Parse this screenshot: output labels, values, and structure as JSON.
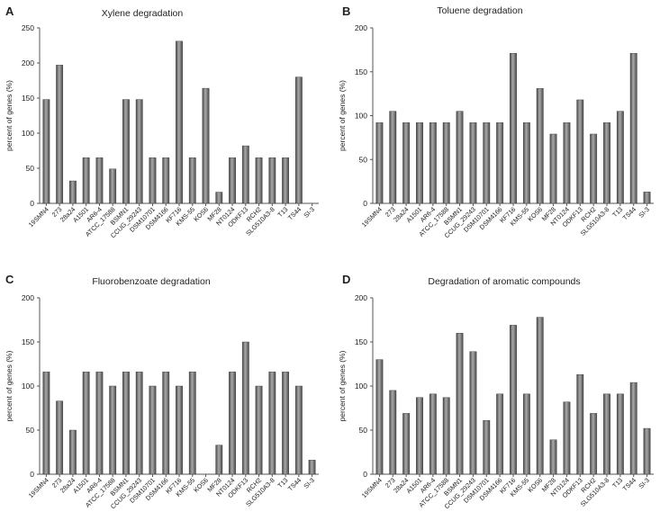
{
  "figure": {
    "colors": {
      "bar": "#4a4a4a",
      "bar_highlight": "#a9a9a9",
      "axis": "#555555",
      "text": "#222222"
    }
  },
  "chart_data": [
    {
      "panel": "A",
      "type": "bar",
      "title": "Xylene degradation",
      "xlabel": "",
      "ylabel": "percent of genes (%)",
      "ylim": [
        0,
        250
      ],
      "yticks": [
        0,
        50,
        100,
        150,
        200,
        250
      ],
      "categories": [
        "19SMN4",
        "273",
        "28a24",
        "A1501",
        "AR6-4",
        "ATCC_17588",
        "BSMN1",
        "CCUG_29243",
        "DSM10701",
        "DSM4166",
        "KF716",
        "KMS-55",
        "KOS6",
        "MF28",
        "NT0124",
        "ODKF13",
        "RCH2",
        "SLG510A3-8",
        "T13",
        "TS44",
        "SI-3"
      ],
      "values": [
        148,
        197,
        32,
        65,
        65,
        49,
        148,
        148,
        65,
        65,
        231,
        65,
        164,
        16,
        65,
        82,
        65,
        65,
        65,
        180,
        0
      ]
    },
    {
      "panel": "B",
      "type": "bar",
      "title": "Toluene degradation",
      "xlabel": "",
      "ylabel": "percent of genes (%)",
      "ylim": [
        0,
        200
      ],
      "yticks": [
        0,
        50,
        100,
        150,
        200
      ],
      "categories": [
        "19SMN4",
        "273",
        "28a24",
        "A1501",
        "AR6-4",
        "ATCC_17588",
        "BSMN1",
        "CCUG_29243",
        "DSM10701",
        "DSM4166",
        "KF716",
        "KMS-55",
        "KOS6",
        "MF28",
        "NT0124",
        "ODKF13",
        "RCH2",
        "SLG510A3-8",
        "T13",
        "TS44",
        "SI-3"
      ],
      "values": [
        92,
        105,
        92,
        92,
        92,
        92,
        105,
        92,
        92,
        92,
        171,
        92,
        131,
        79,
        92,
        118,
        79,
        92,
        105,
        171,
        13
      ]
    },
    {
      "panel": "C",
      "type": "bar",
      "title": "Fluorobenzoate degradation",
      "xlabel": "",
      "ylabel": "percent of genes (%)",
      "ylim": [
        0,
        200
      ],
      "yticks": [
        0,
        50,
        100,
        150,
        200
      ],
      "categories": [
        "19SMN4",
        "273",
        "28a24",
        "A1501",
        "AR6-4",
        "ATCC_17588",
        "BSMN1",
        "CCUG_29243",
        "DSM10701",
        "DSM4166",
        "KF716",
        "KMS-55",
        "KOS6",
        "MF28",
        "NT0124",
        "ODKF13",
        "RCH2",
        "SLG510A3-8",
        "T13",
        "TS44",
        "SI-3"
      ],
      "values": [
        116,
        83,
        50,
        116,
        116,
        100,
        116,
        116,
        100,
        116,
        100,
        116,
        0,
        33,
        116,
        150,
        100,
        116,
        116,
        100,
        16
      ]
    },
    {
      "panel": "D",
      "type": "bar",
      "title": "Degradation of aromatic compounds",
      "xlabel": "",
      "ylabel": "percent of genes (%)",
      "ylim": [
        0,
        200
      ],
      "yticks": [
        0,
        50,
        100,
        150,
        200
      ],
      "categories": [
        "19SMN4",
        "273",
        "28a24",
        "A1501",
        "AR6-4",
        "ATCC_17588",
        "BSMN1",
        "CCUG_29243",
        "DSM10701",
        "DSM4166",
        "KF716",
        "KMS-55",
        "KOS6",
        "MF28",
        "NT0124",
        "ODKF13",
        "RCH2",
        "SLG510A3-8",
        "T13",
        "TS44",
        "SI-3"
      ],
      "values": [
        130,
        95,
        69,
        87,
        91,
        87,
        160,
        139,
        61,
        91,
        169,
        91,
        178,
        39,
        82,
        113,
        69,
        91,
        91,
        104,
        52
      ]
    }
  ]
}
